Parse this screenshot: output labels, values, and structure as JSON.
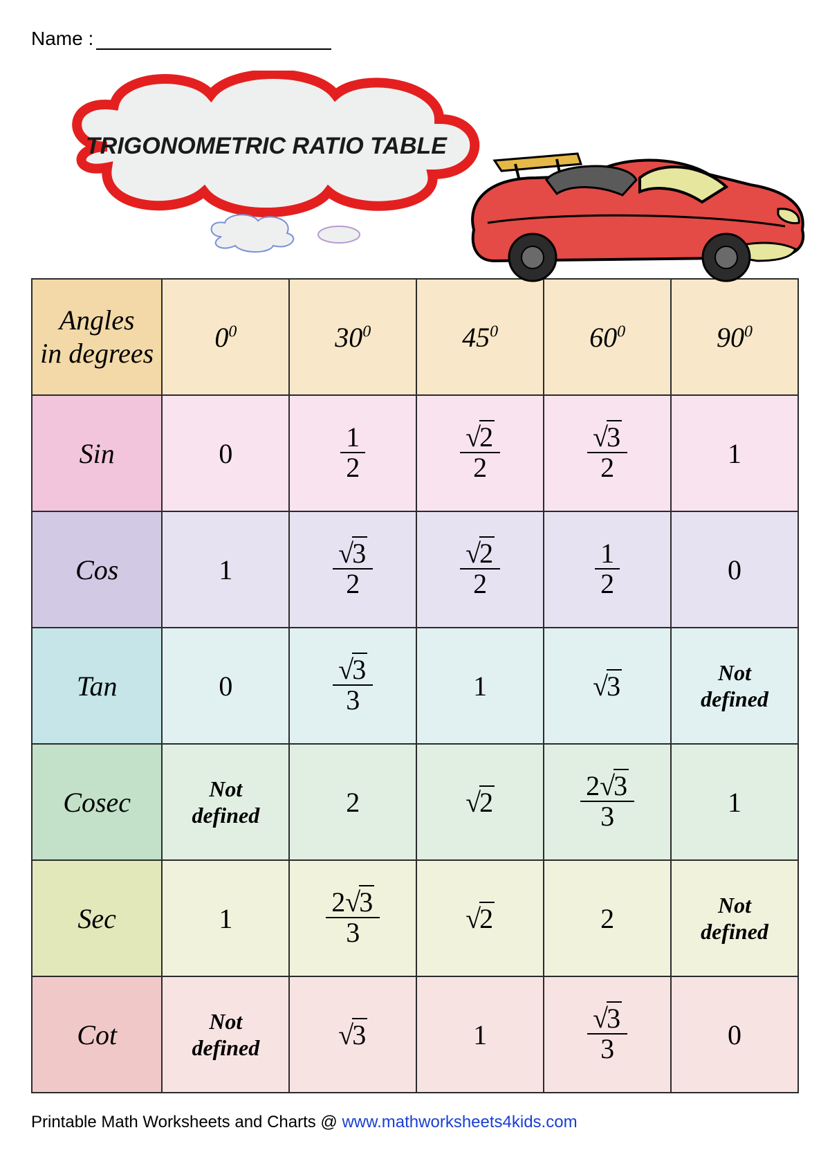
{
  "name_label": "Name :",
  "title": "TRIGONOMETRIC RATIO TABLE",
  "footer_text": "Printable Math Worksheets and Charts @ ",
  "footer_link": "www.mathworksheets4kids.com",
  "table": {
    "corner_label": "Angles\nin degrees",
    "angles": [
      "0",
      "30",
      "45",
      "60",
      "90"
    ],
    "rows": [
      {
        "label": "Sin",
        "header_bg": "#f3c5dc",
        "cell_bg": "#f8e3ef",
        "values": [
          {
            "type": "num",
            "val": "0"
          },
          {
            "type": "frac",
            "num": "1",
            "den": "2"
          },
          {
            "type": "frac_sqrt",
            "coef": "",
            "rad": "2",
            "den": "2"
          },
          {
            "type": "frac_sqrt",
            "coef": "",
            "rad": "3",
            "den": "2"
          },
          {
            "type": "num",
            "val": "1"
          }
        ]
      },
      {
        "label": "Cos",
        "header_bg": "#d2c9e5",
        "cell_bg": "#e7e2f1",
        "values": [
          {
            "type": "num",
            "val": "1"
          },
          {
            "type": "frac_sqrt",
            "coef": "",
            "rad": "3",
            "den": "2"
          },
          {
            "type": "frac_sqrt",
            "coef": "",
            "rad": "2",
            "den": "2"
          },
          {
            "type": "frac",
            "num": "1",
            "den": "2"
          },
          {
            "type": "num",
            "val": "0"
          }
        ]
      },
      {
        "label": "Tan",
        "header_bg": "#c5e5e8",
        "cell_bg": "#e1f1f2",
        "values": [
          {
            "type": "num",
            "val": "0"
          },
          {
            "type": "frac_sqrt",
            "coef": "",
            "rad": "3",
            "den": "3"
          },
          {
            "type": "num",
            "val": "1"
          },
          {
            "type": "sqrt",
            "coef": "",
            "rad": "3"
          },
          {
            "type": "notdef"
          }
        ]
      },
      {
        "label": "Cosec",
        "header_bg": "#c3e1c8",
        "cell_bg": "#e0efe2",
        "values": [
          {
            "type": "notdef"
          },
          {
            "type": "num",
            "val": "2"
          },
          {
            "type": "sqrt",
            "coef": "",
            "rad": "2"
          },
          {
            "type": "frac_sqrt",
            "coef": "2",
            "rad": "3",
            "den": "3"
          },
          {
            "type": "num",
            "val": "1"
          }
        ]
      },
      {
        "label": "Sec",
        "header_bg": "#e3e8bb",
        "cell_bg": "#f0f2dc",
        "values": [
          {
            "type": "num",
            "val": "1"
          },
          {
            "type": "frac_sqrt",
            "coef": "2",
            "rad": "3",
            "den": "3"
          },
          {
            "type": "sqrt",
            "coef": "",
            "rad": "2"
          },
          {
            "type": "num",
            "val": "2"
          },
          {
            "type": "notdef"
          }
        ]
      },
      {
        "label": "Cot",
        "header_bg": "#f1c8c8",
        "cell_bg": "#f8e3e3",
        "values": [
          {
            "type": "notdef"
          },
          {
            "type": "sqrt",
            "coef": "",
            "rad": "3"
          },
          {
            "type": "num",
            "val": "1"
          },
          {
            "type": "frac_sqrt",
            "coef": "",
            "rad": "3",
            "den": "3"
          },
          {
            "type": "num",
            "val": "0"
          }
        ]
      }
    ],
    "header_bg": "#f3d9a8",
    "header_bg_light": "#f8e8c9",
    "border_color": "#2b2b2b"
  },
  "not_defined_text": "Not\ndefined",
  "colors": {
    "cloud_border": "#e3201f",
    "cloud_fill": "#eef0ef",
    "car_body": "#e44a46",
    "car_window": "#e6e69f",
    "car_dark": "#2b2b2b",
    "car_seat": "#5a5a5a"
  }
}
